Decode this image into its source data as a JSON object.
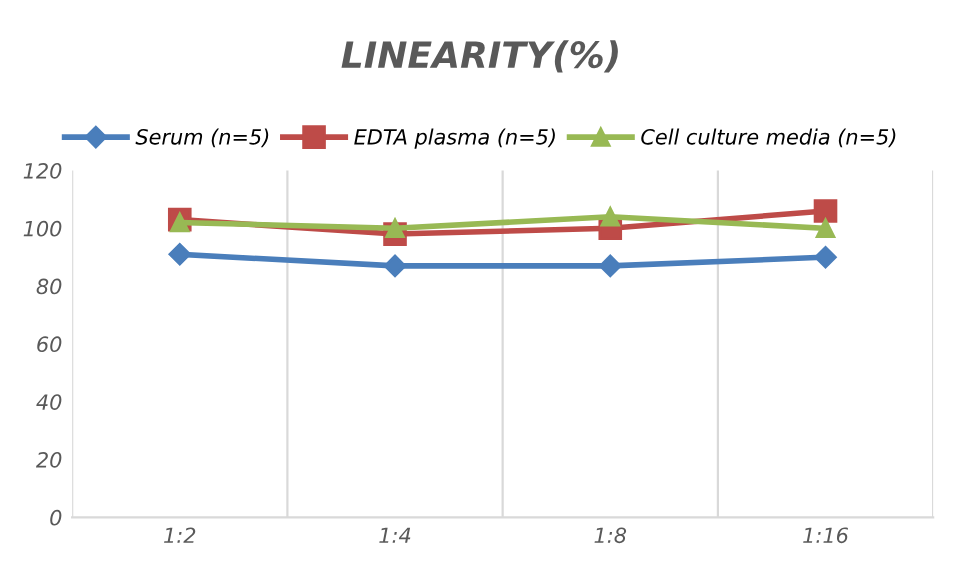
{
  "chart_data": {
    "type": "line",
    "title": "LINEARITY(%)",
    "categories": [
      "1:2",
      "1:4",
      "1:8",
      "1:16"
    ],
    "series": [
      {
        "name": "Serum (n=5)",
        "color": "#4a7ebb",
        "marker": "diamond",
        "values": [
          91,
          87,
          87,
          90
        ]
      },
      {
        "name": "EDTA plasma (n=5)",
        "color": "#be4b48",
        "marker": "square",
        "values": [
          103,
          98,
          100,
          106
        ]
      },
      {
        "name": "Cell culture media (n=5)",
        "color": "#98b954",
        "marker": "triangle",
        "values": [
          102,
          100,
          104,
          100
        ]
      }
    ],
    "ylim": [
      0,
      120
    ],
    "yticks": [
      0,
      20,
      40,
      60,
      80,
      100,
      120
    ],
    "grid": "x",
    "legend": "top",
    "line_style": "solid"
  }
}
